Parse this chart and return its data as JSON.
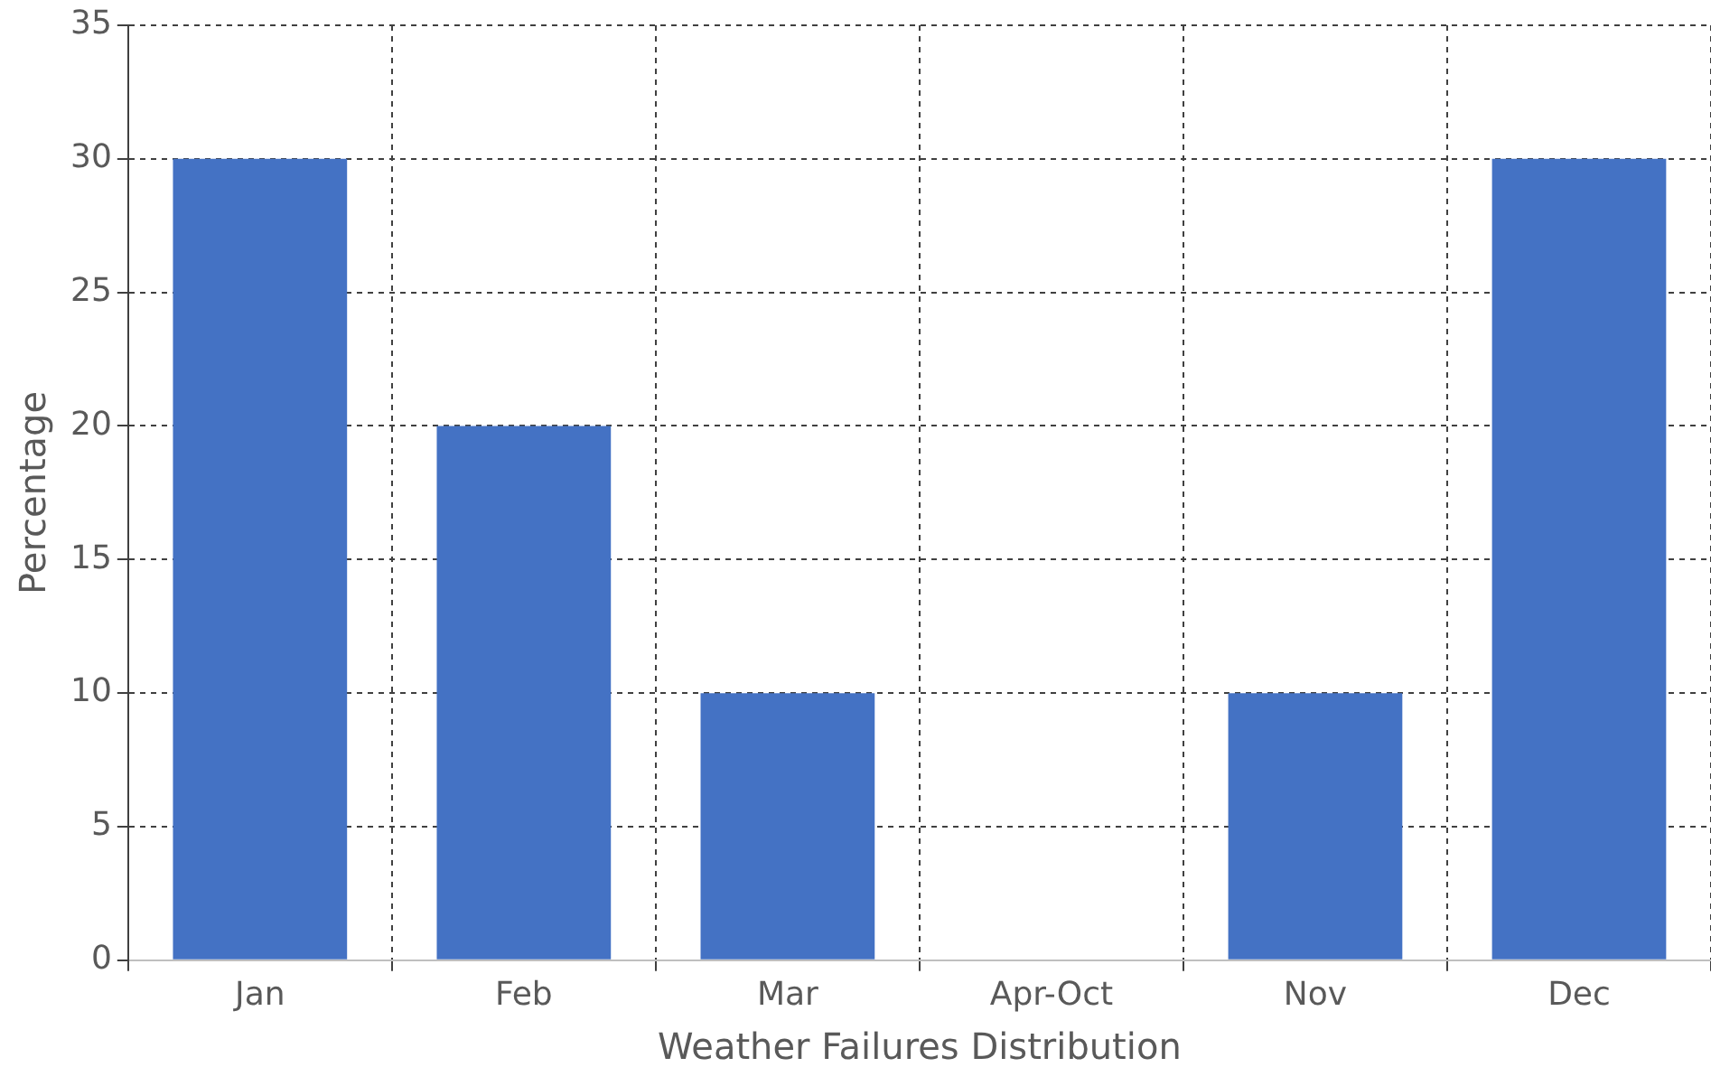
{
  "chart_data": {
    "type": "bar",
    "xlabel": "Weather Failures Distribution",
    "ylabel": "Percentage",
    "categories": [
      "Jan",
      "Feb",
      "Mar",
      "Apr-Oct",
      "Nov",
      "Dec"
    ],
    "values": [
      30,
      20,
      10,
      0,
      10,
      30
    ],
    "color": "#4472c4",
    "ylim": [
      0,
      35
    ],
    "yticks": [
      0,
      5,
      10,
      15,
      20,
      25,
      30,
      35
    ],
    "grid": true
  }
}
